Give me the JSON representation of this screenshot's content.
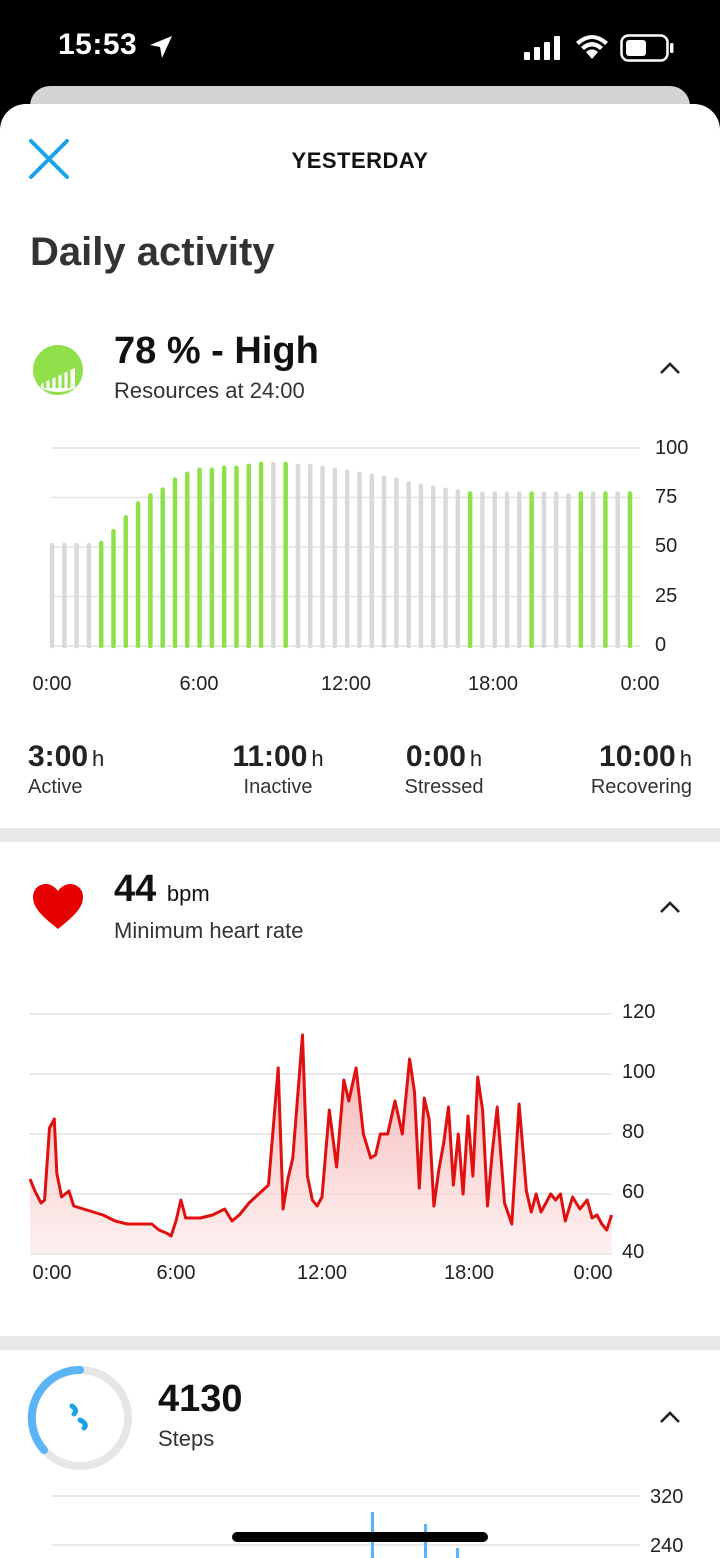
{
  "status_bar": {
    "time": "15:53"
  },
  "header": {
    "title": "YESTERDAY"
  },
  "page": {
    "title": "Daily activity"
  },
  "resources": {
    "value": "78 % - High",
    "subtitle": "Resources at 24:00",
    "icon_color": "#8fe04a",
    "y_ticks": [
      "100",
      "75",
      "50",
      "25",
      "0"
    ],
    "x_ticks": [
      "0:00",
      "6:00",
      "12:00",
      "18:00",
      "0:00"
    ],
    "stats": [
      {
        "value": "3:00",
        "unit": "h",
        "label": "Active"
      },
      {
        "value": "11:00",
        "unit": "h",
        "label": "Inactive"
      },
      {
        "value": "0:00",
        "unit": "h",
        "label": "Stressed"
      },
      {
        "value": "10:00",
        "unit": "h",
        "label": "Recovering"
      }
    ]
  },
  "heart_rate": {
    "value": "44",
    "unit": "bpm",
    "subtitle": "Minimum heart rate",
    "y_ticks": [
      "120",
      "100",
      "80",
      "60",
      "40"
    ],
    "x_ticks": [
      "0:00",
      "6:00",
      "12:00",
      "18:00",
      "0:00"
    ]
  },
  "steps": {
    "value": "4130",
    "subtitle": "Steps",
    "y_ticks": [
      "320",
      "240"
    ]
  },
  "chart_data": [
    {
      "type": "bar",
      "title": "",
      "xlabel": "",
      "ylabel": "",
      "ylim": [
        0,
        100
      ],
      "colors": {
        "recovering": "#8fe04a",
        "inactive": "#d9d9d9"
      },
      "values": [
        51,
        51,
        51,
        51,
        52,
        58,
        65,
        72,
        76,
        79,
        84,
        87,
        89,
        89,
        90,
        90,
        91,
        92,
        92,
        92,
        91,
        91,
        90,
        89,
        88,
        87,
        86,
        85,
        84,
        82,
        81,
        80,
        79,
        78,
        77,
        77,
        77,
        77,
        77,
        77,
        77,
        77,
        76,
        77,
        77,
        77,
        77,
        77
      ],
      "recovering": [
        0,
        0,
        0,
        0,
        1,
        1,
        1,
        1,
        1,
        1,
        1,
        1,
        1,
        1,
        1,
        1,
        1,
        1,
        0,
        1,
        0,
        0,
        0,
        0,
        0,
        0,
        0,
        0,
        0,
        0,
        0,
        0,
        0,
        0,
        1,
        0,
        0,
        0,
        0,
        1,
        0,
        0,
        0,
        1,
        0,
        1,
        0,
        1
      ]
    },
    {
      "type": "area",
      "title": "",
      "xlabel": "",
      "ylabel": "",
      "ylim": [
        40,
        120
      ],
      "xlim": [
        0,
        24
      ],
      "color": "#e01010",
      "x": [
        0,
        0.2,
        0.45,
        0.6,
        0.8,
        1.0,
        1.1,
        1.3,
        1.6,
        1.8,
        2.2,
        3.0,
        3.5,
        4.0,
        4.5,
        5.0,
        5.3,
        5.6,
        5.8,
        6.0,
        6.2,
        6.4,
        7.0,
        7.5,
        8.0,
        8.3,
        8.6,
        9.0,
        9.4,
        9.8,
        10.2,
        10.4,
        10.6,
        10.8,
        11.2,
        11.4,
        11.6,
        11.8,
        12.0,
        12.3,
        12.6,
        12.9,
        13.1,
        13.4,
        13.7,
        14.0,
        14.2,
        14.4,
        14.7,
        15.0,
        15.3,
        15.6,
        15.8,
        16.0,
        16.2,
        16.4,
        16.6,
        16.8,
        17.0,
        17.2,
        17.4,
        17.6,
        17.8,
        18.0,
        18.2,
        18.4,
        18.6,
        18.8,
        19.0,
        19.2,
        19.5,
        19.8,
        20.1,
        20.4,
        20.6,
        20.8,
        21.0,
        21.2,
        21.4,
        21.6,
        21.8,
        22.0,
        22.3,
        22.6,
        22.9,
        23.1,
        23.3,
        23.5,
        23.7,
        23.9
      ],
      "y": [
        65,
        61,
        57,
        58,
        82,
        85,
        67,
        59,
        61,
        56,
        55,
        53,
        51,
        50,
        50,
        50,
        48,
        47,
        46,
        51,
        58,
        52,
        52,
        53,
        55,
        51,
        53,
        57,
        60,
        63,
        102,
        55,
        65,
        72,
        113,
        66,
        58,
        56,
        59,
        88,
        69,
        98,
        91,
        102,
        80,
        72,
        73,
        80,
        80,
        91,
        80,
        105,
        94,
        62,
        92,
        85,
        56,
        68,
        77,
        89,
        63,
        80,
        60,
        86,
        66,
        99,
        88,
        56,
        74,
        89,
        57,
        50,
        90,
        61,
        54,
        60,
        54,
        57,
        60,
        58,
        60,
        51,
        59,
        55,
        58,
        52,
        53,
        50,
        48,
        53
      ],
      "series_fill": "#f7c8c8"
    },
    {
      "type": "bar",
      "title": "",
      "xlabel": "",
      "ylabel": "",
      "ylim": [
        240,
        320
      ]
    }
  ]
}
